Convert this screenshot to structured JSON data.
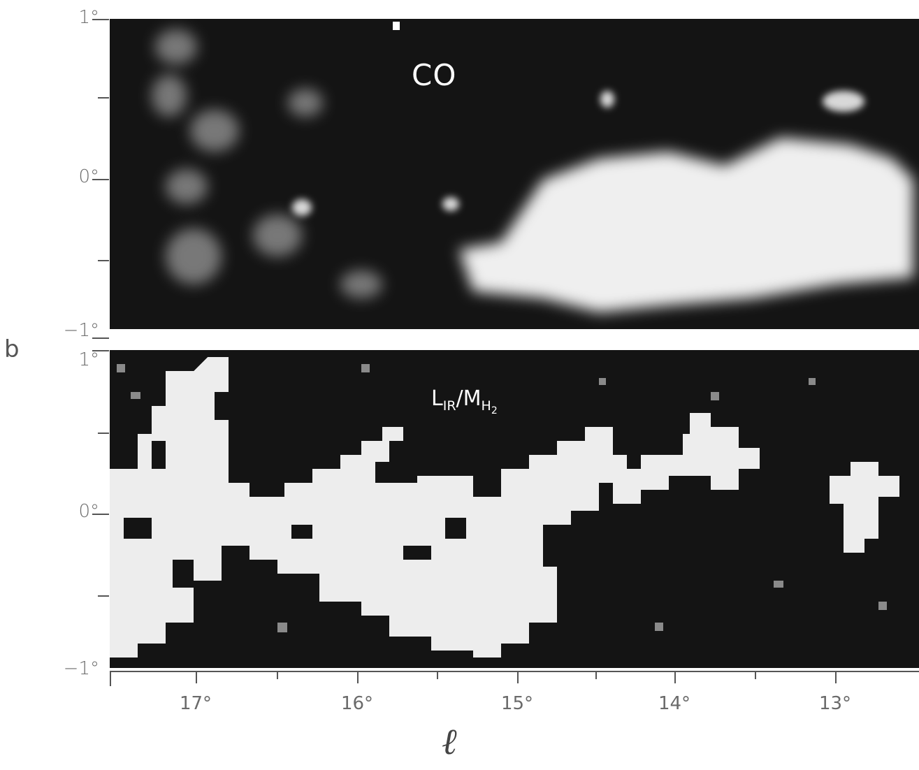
{
  "panel_letter": "b",
  "x_axis_symbol": "ℓ",
  "x_tick_labels": [
    "17°",
    "16°",
    "15°",
    "14°",
    "13°"
  ],
  "top_panel": {
    "label": "CO",
    "y_tick_labels": [
      "1°",
      "0°",
      "−1°"
    ]
  },
  "bottom_panel": {
    "label_main": "L",
    "label_sub1": "IR",
    "label_slash": "/M",
    "label_sub2": "H",
    "label_sub3": "2",
    "y_tick_labels": [
      "1°",
      "0°",
      "−1°"
    ]
  },
  "colors": {
    "background": "#141414",
    "bright": "#f2f2f2",
    "axis": "#555555"
  }
}
